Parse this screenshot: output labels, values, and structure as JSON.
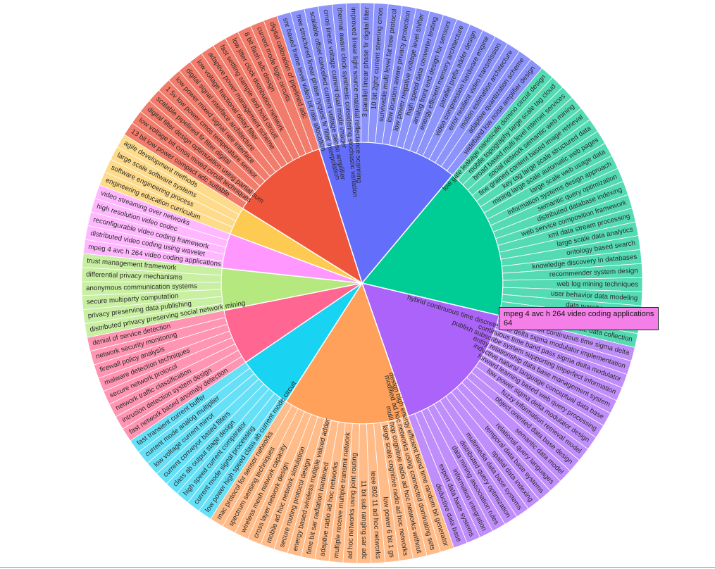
{
  "chart_data": {
    "type": "sunburst",
    "title": "",
    "tooltip": {
      "label": "mpeg 4 avc h 264 video coding applications",
      "value": "64"
    },
    "groups": [
      {
        "name": "",
        "color": "#ef553b",
        "leaf_color": "#f27c6b",
        "value": 14,
        "leaves": [
          "13 bit low power compact adc suitable",
          "low voltage bit cmos mixed circuit techniques",
          "digital filter design optimization using partial sum",
          "scalable pipelined fir filter digital",
          "1 5v low power cmos temperature sensor",
          "low power mixed signal rate interface",
          "digital signal interface architecture",
          "low voltage fractional delay filter",
          "adaptive power management scheme",
          "fast settling sample and hold circuit",
          "low jitter clock distribution network",
          "8 bit flash adc design",
          "current mode logic circuits",
          "digital calibration of pipelined adc"
        ]
      },
      {
        "name": "",
        "color": "#636efa",
        "leaf_color": "#8c94fb",
        "value": 20,
        "leaves": [
          "snr based frame level video bit rate allocation",
          "tree structured linear phase nyquist fir filter interpolation",
          "scalable offset cancelled current voltage sense amplifier",
          "cmos linear voltage current dual mode imager",
          "thermal aware clock synthesis considering stochastic variation",
          "improved linear light source material reflectance scanning",
          "3 parallel linear phase fir digital filter",
          "10 bit 2ghz current steering cmos",
          "survivable multi level fat tree protocol",
          "low location aware privacy protection",
          "low power negative voltage level shifter",
          "high speed data converter testing",
          "analog front end design for sensors",
          "energy efficient memory architecture",
          "parallel prefix adder design",
          "video compression hardware engine",
          "error resilient video transmission",
          "motion estimation architecture",
          "adaptive quantization scheme",
          "wideband low noise amplifier design"
        ]
      },
      {
        "name": "",
        "color": "#00cc96",
        "leaf_color": "#55dbb3",
        "value": 22,
        "leaves": [
          "low gate leakage nanoscale domino circuit design",
          "mobile topography large scale tag cloud",
          "broad based multi level internet services",
          "social network semantic web mining",
          "fine grained content based image retrieval",
          "key tag large scale structured data",
          "mining large scale automatic web pages",
          "large scale web usage data",
          "information systems design approach",
          "semantic query optimization",
          "distributed database indexing",
          "web service composition framework",
          "xml data stream processing",
          "large scale data analytics",
          "ontology based search",
          "knowledge discovery in databases",
          "recommender system design",
          "web log mining techniques",
          "user behavior data modeling",
          "data warehouse design",
          "query processing in sensor networks",
          "scalable data collection"
        ]
      },
      {
        "name": "",
        "color": "#ab63fa",
        "leaf_color": "#c08efb",
        "value": 20,
        "leaves": [
          "7 5mw 11 bit continuous time sigma delta",
          "hybrid continuous time discrete time delta sigma modulator implementation",
          "continuous time band pass sigma delta modulator",
          "publish subscribe system supporting imperfect information",
          "entity relationship data base management system",
          "inductive natural language conceptual data base",
          "forward learning based web query processing",
          "low power sigma delta modulator design",
          "fuzzy information retrieval model",
          "object oriented data base design",
          "semantic data model",
          "relational query languages",
          "temporal data base systems",
          "spatial data indexing",
          "multimedia data base systems",
          "distributed query optimization",
          "data mining association rules",
          "information integration",
          "expert data base systems",
          "deductive data base"
        ]
      },
      {
        "name": "",
        "color": "#ffa15a",
        "leaf_color": "#ffbb88",
        "value": 18,
        "leaves": [
          "design high energy efficient band time random bit generator",
          "modified ad hoc networks using connected dominating sets",
          "multi hop cognitive radio ad hoc networks without",
          "large scale cognitive radio ad hoc networks",
          "low power 6 bit 1 gs",
          "ieee 802 11 ad hoc networks",
          "11 bit sub ranging sar adc",
          "ad hoc networks using joint routing",
          "multiple receive multiple transmit network",
          "adaptive radio ad hoc networks",
          "time bit sar radiation hardened",
          "energy based wireless multiple valued adder",
          "secure routing protocol design",
          "mobile ad hoc network simulation",
          "cross layer network design",
          "wireless mesh network capacity",
          "spectrum sensing techniques",
          "mac protocol for sensor networks"
        ]
      },
      {
        "name": "",
        "color": "#19d3f3",
        "leaf_color": "#66e0f7",
        "value": 8,
        "leaves": [
          "low power high speed class ab current mode circuit",
          "current mode signal processing",
          "high speed current comparator",
          "class ab output stage design",
          "current conveyor based filters",
          "low voltage current mirror",
          "current mode analog multiplier",
          "fast transient current buffer"
        ]
      },
      {
        "name": "",
        "color": "#ff6692",
        "leaf_color": "#ff94b3",
        "value": 8,
        "leaves": [
          "fast network based anomaly detection",
          "intrusion detection system design",
          "network traffic classification",
          "secure network protocol",
          "malware detection techniques",
          "firewall policy analysis",
          "network security monitoring",
          "denial of service detection"
        ]
      },
      {
        "name": "",
        "color": "#b6e880",
        "leaf_color": "#c9efa3",
        "value": 6,
        "leaves": [
          "distributed privacy preserving social network mining",
          "privacy preserving data publishing",
          "secure multiparty computation",
          "anonymous communication systems",
          "differential privacy mechanisms",
          "trust management framework"
        ]
      },
      {
        "name": "",
        "color": "#ff97ff",
        "leaf_color": "#ffb8ff",
        "value": 5,
        "leaves": [
          "mpeg 4 avc h 264 video coding applications",
          "distributed video coding using wavelet",
          "reconfigurable video coding framework",
          "high resolution video codec",
          "video streaming over networks"
        ]
      },
      {
        "name": "",
        "color": "#fecb52",
        "leaf_color": "#fedb8a",
        "value": 4,
        "leaves": [
          "engineering education curriculum",
          "software engineering process",
          "large scale software systems",
          "agile development methods"
        ]
      }
    ]
  }
}
